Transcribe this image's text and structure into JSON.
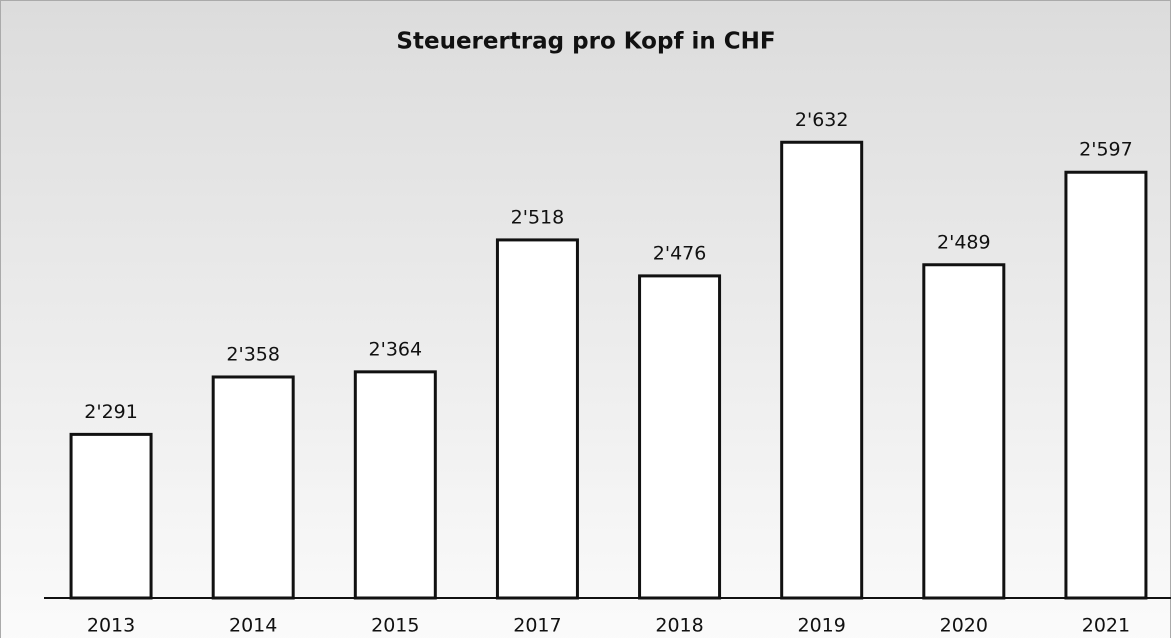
{
  "chart_data": {
    "type": "bar",
    "title": "Steuerertrag pro Kopf in CHF",
    "categories": [
      "2013",
      "2014",
      "2015",
      "2017",
      "2018",
      "2019",
      "2020",
      "2021"
    ],
    "values": [
      2291,
      2358,
      2364,
      2518,
      2476,
      2632,
      2489,
      2597
    ],
    "value_labels": [
      "2'291",
      "2'358",
      "2'364",
      "2'518",
      "2'476",
      "2'632",
      "2'489",
      "2'597"
    ],
    "color": "#ffffff",
    "ylim": [
      2100,
      2700
    ]
  }
}
